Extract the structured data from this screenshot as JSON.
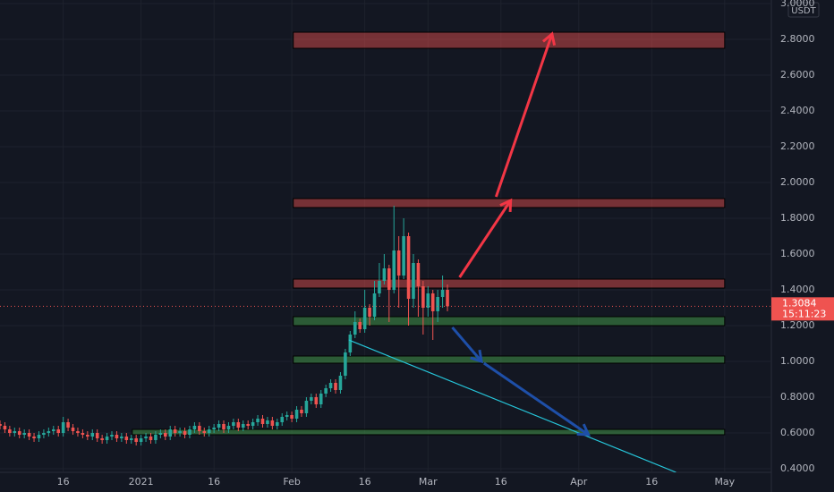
{
  "chart_data": {
    "type": "candlestick",
    "currency": "USDT",
    "x": [
      -29,
      -28,
      -27,
      -26,
      -25,
      -24,
      -23,
      -22,
      -21,
      -20,
      -19,
      -18,
      -17,
      -16,
      -15,
      -14,
      -13,
      -12,
      -11,
      -10,
      -9,
      -8,
      -7,
      -6,
      -5,
      -4,
      -3,
      -2,
      -1,
      0,
      1,
      2,
      3,
      4,
      5,
      6,
      7,
      8,
      9,
      10,
      11,
      12,
      13,
      14,
      15,
      16,
      17,
      18,
      19,
      20,
      21,
      22,
      23,
      24,
      25,
      26,
      27,
      28,
      29,
      30,
      31,
      32,
      33,
      34,
      35,
      36,
      37,
      38,
      39,
      40,
      41,
      42,
      43,
      44,
      45,
      46,
      47,
      48,
      49,
      50,
      51,
      52,
      53,
      54,
      55,
      56,
      57,
      58,
      59,
      60,
      61,
      62,
      63
    ],
    "open": [
      0.65,
      0.64,
      0.62,
      0.6,
      0.61,
      0.59,
      0.6,
      0.58,
      0.57,
      0.59,
      0.6,
      0.61,
      0.62,
      0.6,
      0.66,
      0.63,
      0.61,
      0.6,
      0.59,
      0.58,
      0.6,
      0.57,
      0.56,
      0.58,
      0.59,
      0.57,
      0.58,
      0.56,
      0.57,
      0.55,
      0.57,
      0.58,
      0.56,
      0.59,
      0.6,
      0.58,
      0.62,
      0.6,
      0.61,
      0.59,
      0.62,
      0.64,
      0.61,
      0.6,
      0.62,
      0.63,
      0.65,
      0.62,
      0.64,
      0.66,
      0.63,
      0.65,
      0.64,
      0.66,
      0.68,
      0.65,
      0.67,
      0.64,
      0.66,
      0.69,
      0.7,
      0.68,
      0.73,
      0.71,
      0.78,
      0.8,
      0.76,
      0.82,
      0.85,
      0.88,
      0.84,
      0.92,
      1.05,
      1.15,
      1.22,
      1.18,
      1.3,
      1.25,
      1.38,
      1.45,
      1.52,
      1.4,
      1.62,
      1.48,
      1.7,
      1.35,
      1.55,
      1.42,
      1.3,
      1.38,
      1.28,
      1.36,
      1.4
    ],
    "high": [
      0.67,
      0.66,
      0.64,
      0.63,
      0.63,
      0.62,
      0.62,
      0.6,
      0.61,
      0.62,
      0.63,
      0.64,
      0.64,
      0.69,
      0.68,
      0.65,
      0.63,
      0.62,
      0.61,
      0.62,
      0.62,
      0.59,
      0.6,
      0.61,
      0.61,
      0.6,
      0.6,
      0.59,
      0.59,
      0.59,
      0.6,
      0.6,
      0.61,
      0.62,
      0.62,
      0.64,
      0.64,
      0.63,
      0.63,
      0.64,
      0.66,
      0.66,
      0.63,
      0.64,
      0.65,
      0.67,
      0.67,
      0.66,
      0.68,
      0.68,
      0.67,
      0.67,
      0.68,
      0.7,
      0.7,
      0.69,
      0.69,
      0.68,
      0.71,
      0.72,
      0.72,
      0.75,
      0.75,
      0.8,
      0.82,
      0.82,
      0.84,
      0.87,
      0.9,
      0.9,
      0.94,
      1.07,
      1.17,
      1.28,
      1.24,
      1.4,
      1.32,
      1.45,
      1.55,
      1.6,
      1.54,
      1.87,
      1.7,
      1.8,
      1.72,
      1.6,
      1.57,
      1.45,
      1.42,
      1.4,
      1.4,
      1.48,
      1.43
    ],
    "low": [
      0.62,
      0.6,
      0.58,
      0.58,
      0.57,
      0.57,
      0.56,
      0.55,
      0.55,
      0.57,
      0.58,
      0.59,
      0.58,
      0.58,
      0.61,
      0.59,
      0.58,
      0.57,
      0.56,
      0.56,
      0.55,
      0.54,
      0.54,
      0.56,
      0.55,
      0.55,
      0.54,
      0.54,
      0.53,
      0.53,
      0.55,
      0.54,
      0.54,
      0.57,
      0.56,
      0.56,
      0.58,
      0.58,
      0.57,
      0.57,
      0.6,
      0.59,
      0.58,
      0.58,
      0.6,
      0.61,
      0.6,
      0.6,
      0.62,
      0.61,
      0.61,
      0.62,
      0.62,
      0.64,
      0.63,
      0.63,
      0.62,
      0.62,
      0.64,
      0.67,
      0.66,
      0.66,
      0.69,
      0.69,
      0.76,
      0.74,
      0.74,
      0.8,
      0.83,
      0.82,
      0.82,
      0.9,
      1.03,
      1.13,
      1.16,
      1.16,
      1.2,
      1.23,
      1.36,
      1.43,
      1.22,
      1.38,
      1.3,
      1.46,
      1.2,
      1.3,
      1.25,
      1.15,
      1.25,
      1.12,
      1.22,
      1.3,
      1.28
    ],
    "close": [
      0.64,
      0.62,
      0.6,
      0.61,
      0.59,
      0.6,
      0.58,
      0.57,
      0.59,
      0.6,
      0.61,
      0.62,
      0.6,
      0.66,
      0.63,
      0.61,
      0.6,
      0.59,
      0.58,
      0.6,
      0.57,
      0.56,
      0.58,
      0.59,
      0.57,
      0.58,
      0.56,
      0.57,
      0.55,
      0.57,
      0.58,
      0.56,
      0.59,
      0.6,
      0.58,
      0.62,
      0.6,
      0.61,
      0.59,
      0.62,
      0.64,
      0.61,
      0.6,
      0.62,
      0.63,
      0.65,
      0.62,
      0.64,
      0.66,
      0.63,
      0.65,
      0.64,
      0.66,
      0.68,
      0.65,
      0.67,
      0.64,
      0.66,
      0.69,
      0.7,
      0.68,
      0.73,
      0.71,
      0.78,
      0.8,
      0.76,
      0.82,
      0.85,
      0.88,
      0.84,
      0.92,
      1.05,
      1.15,
      1.22,
      1.18,
      1.3,
      1.25,
      1.38,
      1.45,
      1.52,
      1.4,
      1.62,
      1.48,
      1.7,
      1.35,
      1.55,
      1.42,
      1.3,
      1.38,
      1.28,
      1.36,
      1.4,
      1.3084
    ],
    "up_color": "#26a69a",
    "down_color": "#ef5350",
    "last_price": {
      "value": 1.3084,
      "label": "1.3084"
    },
    "countdown": "15:11:23",
    "xlim": [
      -29,
      129.6
    ],
    "ylim": [
      0.38,
      3.0
    ],
    "xticks": [
      {
        "value": -16,
        "label": "16"
      },
      {
        "value": 0,
        "label": "2021"
      },
      {
        "value": 15,
        "label": "16"
      },
      {
        "value": 31,
        "label": "Feb"
      },
      {
        "value": 46,
        "label": "16"
      },
      {
        "value": 59,
        "label": "Mar"
      },
      {
        "value": 74,
        "label": "16"
      },
      {
        "value": 90,
        "label": "Apr"
      },
      {
        "value": 105,
        "label": "16"
      },
      {
        "value": 120,
        "label": "May"
      }
    ],
    "yticks": [
      {
        "value": 0.4,
        "label": "0.4000"
      },
      {
        "value": 0.6,
        "label": "0.6000"
      },
      {
        "value": 0.8,
        "label": "0.8000"
      },
      {
        "value": 1.0,
        "label": "1.0000"
      },
      {
        "value": 1.2,
        "label": "1.2000"
      },
      {
        "value": 1.4,
        "label": "1.4000"
      },
      {
        "value": 1.6,
        "label": "1.6000"
      },
      {
        "value": 1.8,
        "label": "1.8000"
      },
      {
        "value": 2.0,
        "label": "2.0000"
      },
      {
        "value": 2.2,
        "label": "2.2000"
      },
      {
        "value": 2.4,
        "label": "2.4000"
      },
      {
        "value": 2.6,
        "label": "2.6000"
      },
      {
        "value": 2.8,
        "label": "2.8000"
      },
      {
        "value": 3.0,
        "label": "3.0000"
      }
    ],
    "grid": true,
    "zones": [
      {
        "start": 31.3,
        "end": 120,
        "low": 2.75,
        "high": 2.84,
        "color": "#ef5350"
      },
      {
        "start": 31.3,
        "end": 120,
        "low": 1.86,
        "high": 1.91,
        "color": "#ef5350"
      },
      {
        "start": 31.3,
        "end": 120,
        "low": 1.41,
        "high": 1.46,
        "color": "#ef5350"
      },
      {
        "start": 31.3,
        "end": 120,
        "low": 1.2,
        "high": 1.25,
        "color": "#4caf50"
      },
      {
        "start": 31.3,
        "end": 120,
        "low": 0.99,
        "high": 1.03,
        "color": "#4caf50"
      },
      {
        "start": -1.8,
        "end": 120,
        "low": 0.59,
        "high": 0.62,
        "color": "#4caf50"
      }
    ],
    "arrows": [
      {
        "x": [
          65.5,
          76
        ],
        "y": [
          1.47,
          1.9
        ],
        "color": "#f23645"
      },
      {
        "x": [
          73,
          84.5
        ],
        "y": [
          1.92,
          2.83
        ],
        "color": "#f23645"
      },
      {
        "x": [
          64,
          70
        ],
        "y": [
          1.19,
          1.0
        ],
        "color": "#1e4fa8"
      },
      {
        "x": [
          70.5,
          92
        ],
        "y": [
          0.99,
          0.59
        ],
        "color": "#1e4fa8"
      }
    ],
    "trend_lines": [
      {
        "x": [
          42.7,
          110
        ],
        "y": [
          1.12,
          0.38
        ],
        "color": "#26c6da"
      }
    ]
  }
}
